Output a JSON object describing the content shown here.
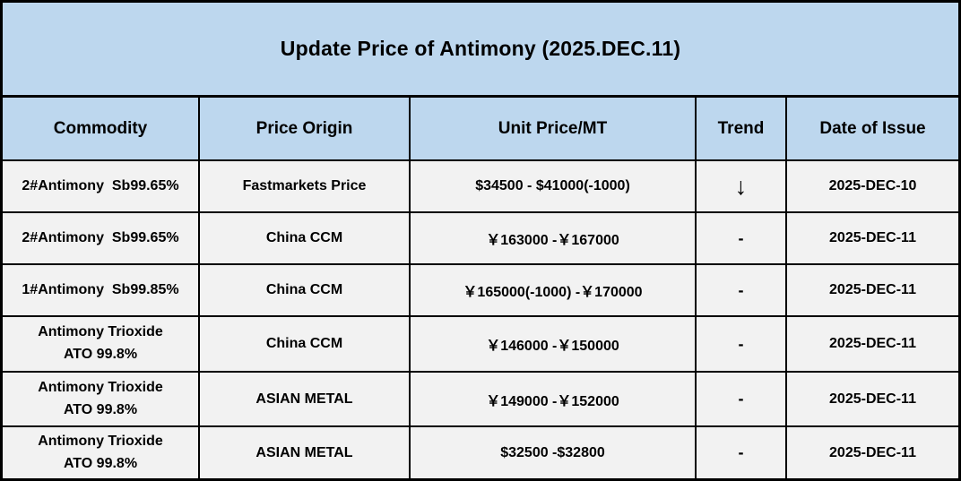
{
  "title": "Update Price of Antimony (2025.DEC.11)",
  "table": {
    "headers": [
      "Commodity",
      "Price Origin",
      "Unit Price/MT",
      "Trend",
      "Date of Issue"
    ],
    "rows": [
      {
        "commodity": "2#Antimony  Sb99.65%",
        "origin": "Fastmarkets Price",
        "price": "$34500 - $41000(-1000)",
        "trend": "↓",
        "date": "2025-DEC-10"
      },
      {
        "commodity": "2#Antimony  Sb99.65%",
        "origin": "China CCM",
        "price": "￥163000 -￥167000",
        "trend": "-",
        "date": "2025-DEC-11"
      },
      {
        "commodity": "1#Antimony  Sb99.85%",
        "origin": "China CCM",
        "price": "￥165000(-1000) -￥170000",
        "trend": "-",
        "date": "2025-DEC-11"
      },
      {
        "commodity": "Antimony Trioxide\nATO 99.8%",
        "origin": "China CCM",
        "price": "￥146000 -￥150000",
        "trend": "-",
        "date": "2025-DEC-11"
      },
      {
        "commodity": "Antimony Trioxide\nATO 99.8%",
        "origin": "ASIAN METAL",
        "price": "￥149000 -￥152000",
        "trend": "-",
        "date": "2025-DEC-11"
      },
      {
        "commodity": "Antimony Trioxide\nATO 99.8%",
        "origin": "ASIAN METAL",
        "price": "$32500 -$32800",
        "trend": "-",
        "date": "2025-DEC-11"
      }
    ]
  },
  "colors": {
    "header_bg": "#BDD7EE",
    "row_bg": "#F2F2F2",
    "border": "#000000",
    "text": "#000000"
  }
}
